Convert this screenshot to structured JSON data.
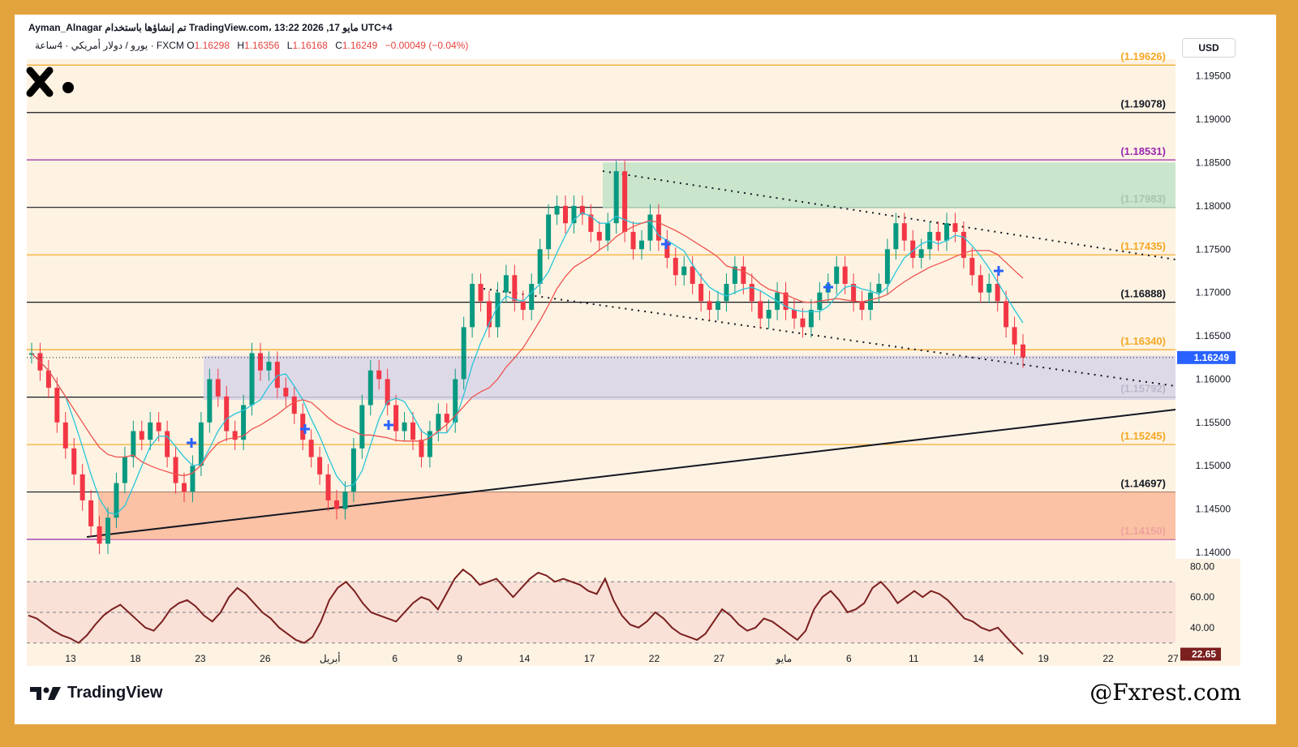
{
  "header": {
    "line1": "Ayman_Alnagar تم إنشاؤها باستخدام TradingView.com، 13:22 2026 ,17 مايو UTC+4",
    "symbol": "يورو / دولار أمريكي · 4ساعة · FXCM",
    "ohlc": [
      {
        "label": "O",
        "value": "1.16298"
      },
      {
        "label": "H",
        "value": "1.16356"
      },
      {
        "label": "L",
        "value": "1.16168"
      },
      {
        "label": "C",
        "value": "1.16249"
      }
    ],
    "change": "−0.00049 (−0.04%)"
  },
  "currency_button": "USD",
  "brand": "TradingView",
  "watermark": "@Fxrest.com",
  "chart_data": {
    "type": "candlestick",
    "price_axis": {
      "ticks": [
        "1.19500",
        "1.19000",
        "1.18500",
        "1.18000",
        "1.17500",
        "1.17000",
        "1.16500",
        "1.16000",
        "1.15500",
        "1.15000",
        "1.14500",
        "1.14000"
      ],
      "range": [
        1.14,
        1.196
      ]
    },
    "current_price": "1.16249",
    "levels": [
      {
        "label": "(1.19626)",
        "value": 1.19626,
        "color": "#F5A623"
      },
      {
        "label": "(1.19078)",
        "value": 1.19078,
        "color": "#131722"
      },
      {
        "label": "(1.18531)",
        "value": 1.18531,
        "color": "#9C27B0"
      },
      {
        "label": "(1.17983)",
        "value": 1.17983,
        "color": "#131722"
      },
      {
        "label": "(1.17435)",
        "value": 1.17435,
        "color": "#F5A623"
      },
      {
        "label": "(1.16888)",
        "value": 1.16888,
        "color": "#131722"
      },
      {
        "label": "(1.16340)",
        "value": 1.1634,
        "color": "#F5A623"
      },
      {
        "label": "(1.15792)",
        "value": 1.15792,
        "color": "#131722"
      },
      {
        "label": "(1.15245)",
        "value": 1.15245,
        "color": "#F5A623"
      },
      {
        "label": "(1.14697)",
        "value": 1.14697,
        "color": "#131722"
      },
      {
        "label": "(1.14150)",
        "value": 1.1415,
        "color": "#9C27B0"
      }
    ],
    "zones": [
      {
        "from": 1.1797,
        "to": 1.185,
        "color": "#BFE3C8"
      },
      {
        "from": 1.1576,
        "to": 1.1627,
        "color": "#D8D4E8"
      },
      {
        "from": 1.1415,
        "to": 1.147,
        "color": "#FBB89A"
      }
    ],
    "x_ticks": [
      "13",
      "18",
      "23",
      "26",
      "أبريل",
      "6",
      "9",
      "14",
      "17",
      "22",
      "27",
      "مايو",
      "6",
      "11",
      "14",
      "19",
      "22",
      "27"
    ],
    "close_path": [
      1.163,
      1.161,
      1.159,
      1.155,
      1.152,
      1.149,
      1.146,
      1.143,
      1.141,
      1.144,
      1.148,
      1.151,
      1.154,
      1.153,
      1.155,
      1.154,
      1.151,
      1.148,
      1.147,
      1.15,
      1.155,
      1.16,
      1.158,
      1.154,
      1.153,
      1.157,
      1.163,
      1.161,
      1.162,
      1.159,
      1.158,
      1.156,
      1.153,
      1.151,
      1.149,
      1.146,
      1.145,
      1.147,
      1.152,
      1.157,
      1.161,
      1.16,
      1.157,
      1.154,
      1.155,
      1.153,
      1.151,
      1.154,
      1.156,
      1.155,
      1.16,
      1.166,
      1.171,
      1.169,
      1.166,
      1.17,
      1.172,
      1.169,
      1.168,
      1.171,
      1.175,
      1.179,
      1.18,
      1.178,
      1.18,
      1.179,
      1.177,
      1.176,
      1.178,
      1.184,
      1.177,
      1.175,
      1.176,
      1.179,
      1.176,
      1.174,
      1.172,
      1.173,
      1.171,
      1.169,
      1.168,
      1.169,
      1.171,
      1.173,
      1.171,
      1.169,
      1.167,
      1.168,
      1.17,
      1.168,
      1.167,
      1.166,
      1.168,
      1.17,
      1.171,
      1.173,
      1.171,
      1.169,
      1.168,
      1.17,
      1.171,
      1.175,
      1.178,
      1.176,
      1.174,
      1.175,
      1.177,
      1.176,
      1.178,
      1.177,
      1.174,
      1.172,
      1.17,
      1.171,
      1.169,
      1.166,
      1.164,
      1.1625
    ],
    "rsi": {
      "levels": [
        "80.00",
        "60.00",
        "40.00"
      ],
      "value": "22.65",
      "path": [
        48,
        46,
        42,
        38,
        35,
        33,
        30,
        35,
        42,
        48,
        52,
        55,
        50,
        45,
        40,
        38,
        44,
        52,
        56,
        58,
        54,
        48,
        44,
        50,
        60,
        66,
        62,
        56,
        50,
        46,
        40,
        36,
        32,
        30,
        34,
        44,
        58,
        66,
        70,
        64,
        56,
        50,
        48,
        46,
        44,
        50,
        56,
        60,
        58,
        52,
        62,
        72,
        78,
        74,
        68,
        70,
        72,
        66,
        60,
        66,
        72,
        76,
        74,
        70,
        72,
        70,
        68,
        64,
        62,
        72,
        58,
        48,
        42,
        40,
        44,
        50,
        46,
        40,
        36,
        34,
        32,
        36,
        44,
        52,
        48,
        42,
        38,
        40,
        46,
        44,
        40,
        36,
        32,
        38,
        52,
        60,
        64,
        58,
        50,
        52,
        56,
        66,
        70,
        64,
        56,
        60,
        64,
        60,
        64,
        62,
        58,
        52,
        46,
        44,
        40,
        38,
        40,
        34,
        28,
        22.65
      ]
    }
  }
}
